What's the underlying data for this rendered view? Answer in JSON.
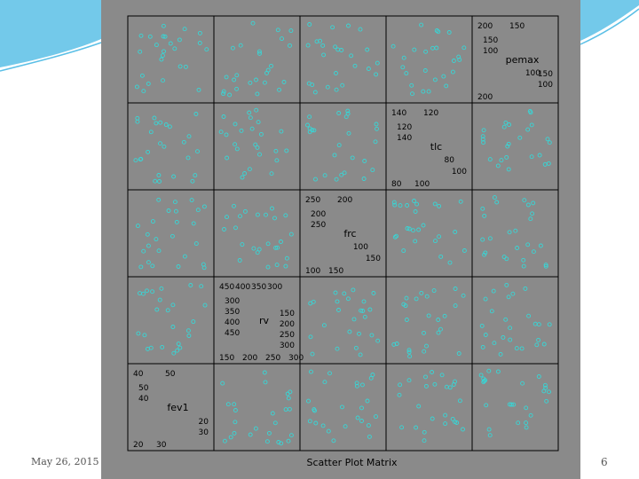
{
  "slide": {
    "date": "May 26, 2015",
    "page_number": "6",
    "accent_color": "#5bbfe6"
  },
  "chart_data": {
    "type": "scatter",
    "title": "Scatter Plot Matrix",
    "point_color": "#38d6d6",
    "panel_color": "#8a8a8a",
    "variables": [
      {
        "name": "pemax",
        "ticks_a": [
          "200",
          "150"
        ],
        "ticks_b": [
          "150",
          "100"
        ],
        "ticks_c": [
          "100",
          "150"
        ],
        "ticks_d": [
          "200"
        ],
        "ticks_e": [
          "100"
        ]
      },
      {
        "name": "tlc",
        "ticks_a": [
          "140",
          "120"
        ],
        "ticks_b": [
          "120",
          "140"
        ],
        "ticks_c": [
          "100"
        ],
        "ticks_d": [
          "80",
          "100"
        ],
        "ticks_e": [
          "80"
        ]
      },
      {
        "name": "frc",
        "ticks_a": [
          "250",
          "200"
        ],
        "ticks_b": [
          "200",
          "250"
        ],
        "ticks_c": [
          "150"
        ],
        "ticks_d": [
          "100",
          "150"
        ],
        "ticks_e": [
          "100"
        ]
      },
      {
        "name": "rv",
        "ticks_a": [
          "450",
          "400",
          "350",
          "300"
        ],
        "ticks_b": [
          "300",
          "350",
          "400",
          "450"
        ],
        "ticks_c": [
          "300",
          "250",
          "200",
          "150"
        ],
        "ticks_d": [
          "150",
          "200",
          "250",
          "300"
        ]
      },
      {
        "name": "fev1",
        "ticks_a": [
          "40",
          "50"
        ],
        "ticks_b": [
          "50",
          "40"
        ],
        "ticks_c": [
          "30",
          "20"
        ],
        "ticks_d": [
          "20",
          "30"
        ]
      }
    ]
  }
}
